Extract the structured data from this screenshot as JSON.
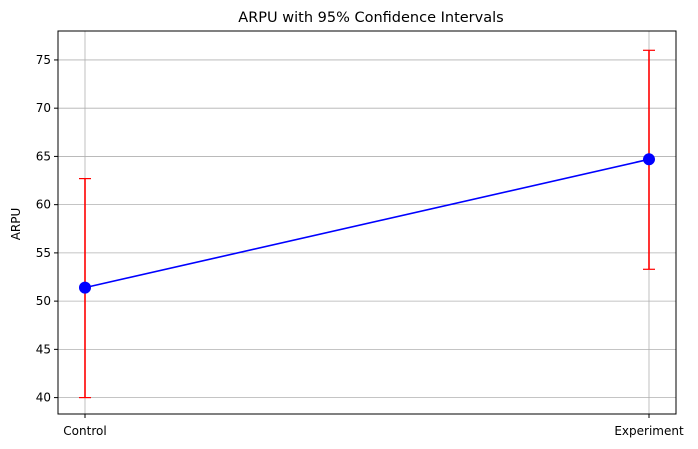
{
  "chart_data": {
    "type": "line",
    "title": "ARPU with 95% Confidence Intervals",
    "xlabel": "",
    "ylabel": "ARPU",
    "categories": [
      "Control",
      "Experiment"
    ],
    "series": [
      {
        "values": [
          51.4,
          64.7
        ],
        "ci_lower": [
          40.0,
          53.3
        ],
        "ci_upper": [
          62.7,
          76.0
        ],
        "color": "#0000ff",
        "error_color": "#ff0000"
      }
    ],
    "ylim": [
      38.3,
      78.0
    ],
    "yticks": [
      40,
      45,
      50,
      55,
      60,
      65,
      70,
      75
    ],
    "grid": true
  }
}
